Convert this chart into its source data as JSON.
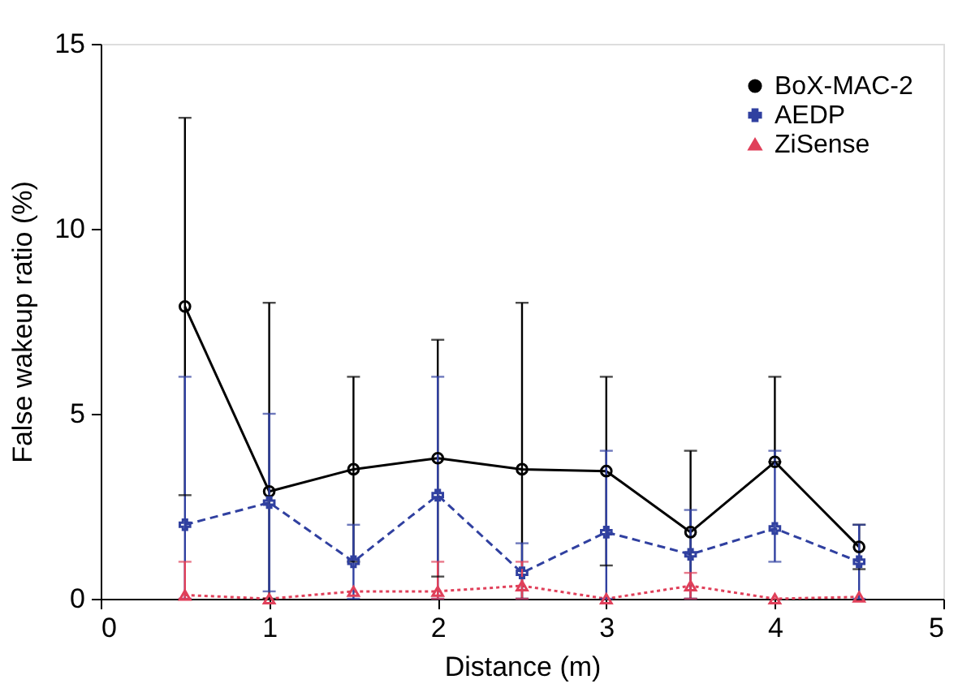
{
  "chart_data": {
    "type": "line",
    "xlabel": "Distance (m)",
    "ylabel": "False wakeup ratio (%)",
    "x": [
      0.5,
      1,
      1.5,
      2,
      2.5,
      3,
      3.5,
      4,
      4.5
    ],
    "xlim": [
      0,
      5
    ],
    "xticks": [
      0,
      1,
      2,
      3,
      4,
      5
    ],
    "ylim": [
      0,
      15
    ],
    "yticks": [
      0,
      5,
      10,
      15
    ],
    "grid": false,
    "legend": "top right",
    "series": [
      {
        "name": "BoX-MAC-2",
        "color": "#000000",
        "marker": "circle",
        "line_style": "solid",
        "values": [
          7.9,
          2.9,
          3.5,
          3.8,
          3.5,
          3.45,
          1.8,
          3.7,
          1.4
        ],
        "errors": [
          [
            2.8,
            13
          ],
          [
            0,
            8
          ],
          [
            1,
            6
          ],
          [
            0.6,
            7
          ],
          [
            0,
            8
          ],
          [
            0.9,
            6
          ],
          [
            0,
            4
          ],
          [
            3.7,
            6
          ],
          [
            0.8,
            2
          ]
        ]
      },
      {
        "name": "AEDP",
        "color": "#3040a0",
        "marker": "cross",
        "line_style": "dashed",
        "values": [
          2.0,
          2.6,
          1.0,
          2.8,
          0.7,
          1.8,
          1.2,
          1.9,
          1.0
        ],
        "errors": [
          [
            0,
            6
          ],
          [
            0.2,
            5
          ],
          [
            0,
            2
          ],
          [
            0,
            6
          ],
          [
            0,
            1.5
          ],
          [
            0,
            4
          ],
          [
            0,
            2.4
          ],
          [
            1.0,
            4
          ],
          [
            0,
            2
          ]
        ]
      },
      {
        "name": "ZiSense",
        "color": "#e0405a",
        "marker": "triangle",
        "line_style": "dotted",
        "values": [
          0.1,
          0,
          0.2,
          0.2,
          0.35,
          0,
          0.35,
          0,
          0.05
        ],
        "errors": [
          [
            0,
            1.0
          ],
          null,
          null,
          [
            0,
            1.0
          ],
          [
            0,
            1.0
          ],
          null,
          [
            0,
            0.7
          ],
          null,
          null
        ]
      }
    ]
  }
}
